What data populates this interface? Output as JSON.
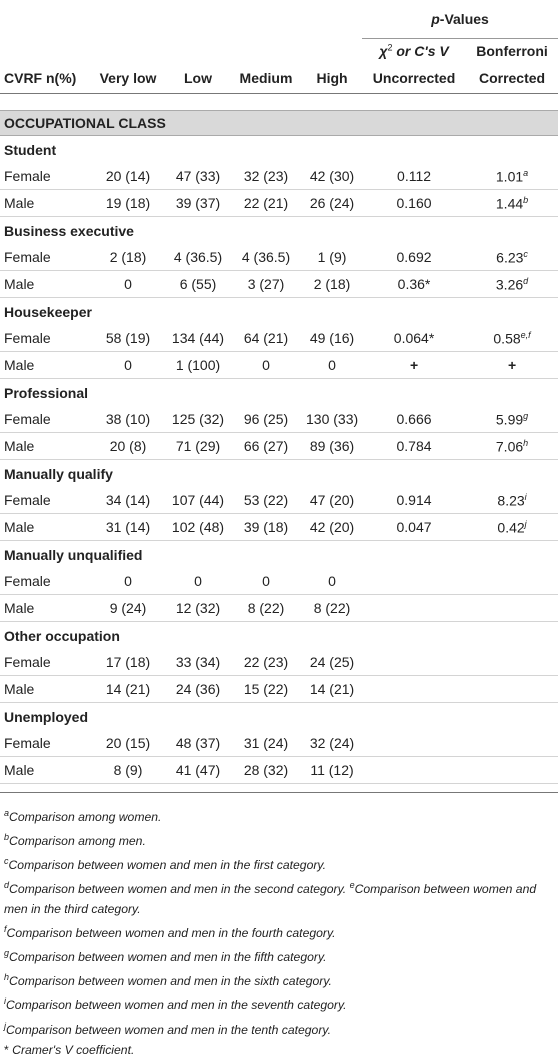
{
  "header": {
    "pvalues_label": "p-Values",
    "chi_label": "χ",
    "chi_sup": "2",
    "chi_rest": " or C's V",
    "bonferroni": "Bonferroni",
    "cvrf": "CVRF n(%)",
    "very_low": "Very low",
    "low": "Low",
    "medium": "Medium",
    "high": "High",
    "uncorrected": "Uncorrected",
    "corrected": "Corrected"
  },
  "section_title": "OCCUPATIONAL CLASS",
  "groups": [
    {
      "name": "Student",
      "rows": [
        {
          "sex": "Female",
          "vl": "20 (14)",
          "l": "47 (33)",
          "m": "32 (23)",
          "h": "42 (30)",
          "unc": "0.112",
          "cor": "1.01",
          "sup": "a"
        },
        {
          "sex": "Male",
          "vl": "19 (18)",
          "l": "39 (37)",
          "m": "22 (21)",
          "h": "26 (24)",
          "unc": "0.160",
          "cor": "1.44",
          "sup": "b"
        }
      ]
    },
    {
      "name": "Business executive",
      "rows": [
        {
          "sex": "Female",
          "vl": "2 (18)",
          "l": "4 (36.5)",
          "m": "4 (36.5)",
          "h": "1 (9)",
          "unc": "0.692",
          "cor": "6.23",
          "sup": "c"
        },
        {
          "sex": "Male",
          "vl": "0",
          "l": "6 (55)",
          "m": "3 (27)",
          "h": "2 (18)",
          "unc": "0.36*",
          "cor": "3.26",
          "sup": "d"
        }
      ]
    },
    {
      "name": "Housekeeper",
      "rows": [
        {
          "sex": "Female",
          "vl": "58 (19)",
          "l": "134 (44)",
          "m": "64 (21)",
          "h": "49 (16)",
          "unc": "0.064*",
          "cor": "0.58",
          "sup": "e,f"
        },
        {
          "sex": "Male",
          "vl": "0",
          "l": "1 (100)",
          "m": "0",
          "h": "0",
          "unc": "+",
          "cor": "+",
          "sup": ""
        }
      ]
    },
    {
      "name": "Professional",
      "rows": [
        {
          "sex": "Female",
          "vl": "38 (10)",
          "l": "125 (32)",
          "m": "96 (25)",
          "h": "130 (33)",
          "unc": "0.666",
          "cor": "5.99",
          "sup": "g"
        },
        {
          "sex": "Male",
          "vl": "20 (8)",
          "l": "71 (29)",
          "m": "66 (27)",
          "h": "89 (36)",
          "unc": "0.784",
          "cor": "7.06",
          "sup": "h"
        }
      ]
    },
    {
      "name": "Manually qualify",
      "rows": [
        {
          "sex": "Female",
          "vl": "34 (14)",
          "l": "107 (44)",
          "m": "53 (22)",
          "h": "47 (20)",
          "unc": "0.914",
          "cor": "8.23",
          "sup": "i"
        },
        {
          "sex": "Male",
          "vl": "31 (14)",
          "l": "102 (48)",
          "m": "39 (18)",
          "h": "42 (20)",
          "unc": "0.047",
          "cor": "0.42",
          "sup": "j"
        }
      ]
    },
    {
      "name": "Manually unqualified",
      "rows": [
        {
          "sex": "Female",
          "vl": "0",
          "l": "0",
          "m": "0",
          "h": "0",
          "unc": "",
          "cor": "",
          "sup": ""
        },
        {
          "sex": "Male",
          "vl": "9 (24)",
          "l": "12 (32)",
          "m": "8 (22)",
          "h": "8 (22)",
          "unc": "",
          "cor": "",
          "sup": ""
        }
      ]
    },
    {
      "name": "Other occupation",
      "rows": [
        {
          "sex": "Female",
          "vl": "17 (18)",
          "l": "33 (34)",
          "m": "22 (23)",
          "h": "24 (25)",
          "unc": "",
          "cor": "",
          "sup": ""
        },
        {
          "sex": "Male",
          "vl": "14 (21)",
          "l": "24 (36)",
          "m": "15 (22)",
          "h": "14 (21)",
          "unc": "",
          "cor": "",
          "sup": ""
        }
      ]
    },
    {
      "name": "Unemployed",
      "rows": [
        {
          "sex": "Female",
          "vl": "20 (15)",
          "l": "48 (37)",
          "m": "31 (24)",
          "h": "32 (24)",
          "unc": "",
          "cor": "",
          "sup": ""
        },
        {
          "sex": "Male",
          "vl": "8 (9)",
          "l": "41 (47)",
          "m": "28 (32)",
          "h": "11 (12)",
          "unc": "",
          "cor": "",
          "sup": ""
        }
      ]
    }
  ],
  "footnotes": [
    {
      "mark": "a",
      "text": "Comparison among women."
    },
    {
      "mark": "b",
      "text": "Comparison among men."
    },
    {
      "mark": "c",
      "text": "Comparison between women and men in the first category."
    },
    {
      "mark": "d",
      "text": "Comparison between women and men in the second category. ",
      "mark2": "e",
      "text2": "Comparison between women and men in the third category."
    },
    {
      "mark": "f",
      "text": "Comparison between women and men in the fourth category."
    },
    {
      "mark": "g",
      "text": "Comparison between women and men in the fifth category."
    },
    {
      "mark": "h",
      "text": "Comparison between women and men in the sixth category."
    },
    {
      "mark": "i",
      "text": "Comparison between women and men in the seventh category."
    },
    {
      "mark": "j",
      "text": "Comparison between women and men in the tenth category."
    },
    {
      "mark": "*",
      "text": " Cramer's V coefficient.",
      "plain_mark": true
    }
  ]
}
